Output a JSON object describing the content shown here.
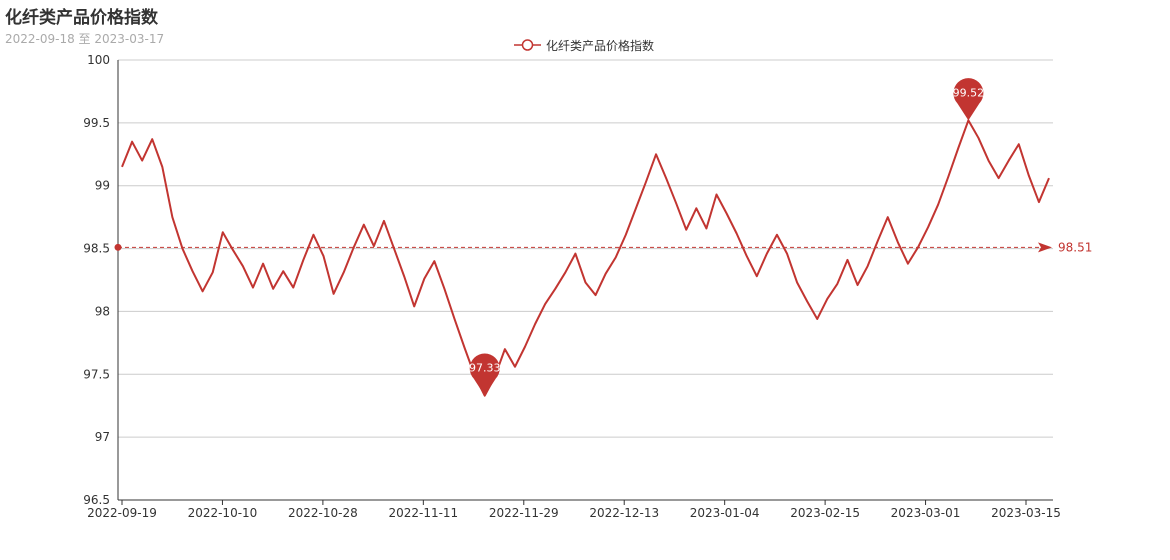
{
  "title": "化纤类产品价格指数",
  "subtitle": "2022-09-18 至 2023-03-17",
  "legend": {
    "label": "化纤类产品价格指数",
    "color": "#c23531"
  },
  "chart_data": {
    "type": "line",
    "title": "化纤类产品价格指数",
    "subtitle": "2022-09-18 至 2023-03-17",
    "xlabel": "",
    "ylabel": "",
    "ylim": [
      96.5,
      100
    ],
    "y_ticks": [
      "96.5",
      "97",
      "97.5",
      "98",
      "98.5",
      "99",
      "99.5",
      "100"
    ],
    "x_tick_labels": [
      "2022-09-19",
      "2022-10-10",
      "2022-10-28",
      "2022-11-11",
      "2022-11-29",
      "2022-12-13",
      "2023-01-04",
      "2023-02-15",
      "2023-03-01",
      "2023-03-15"
    ],
    "grid": true,
    "legend_position": "top-center",
    "series": [
      {
        "name": "化纤类产品价格指数",
        "color": "#c23531",
        "values": [
          99.15,
          99.35,
          99.2,
          99.37,
          99.15,
          98.75,
          98.5,
          98.32,
          98.16,
          98.31,
          98.63,
          98.49,
          98.36,
          98.19,
          98.38,
          98.18,
          98.32,
          98.19,
          98.41,
          98.61,
          98.44,
          98.14,
          98.31,
          98.51,
          98.69,
          98.52,
          98.72,
          98.5,
          98.28,
          98.04,
          98.26,
          98.4,
          98.18,
          97.94,
          97.71,
          97.49,
          97.33,
          97.48,
          97.7,
          97.56,
          97.72,
          97.9,
          98.06,
          98.18,
          98.31,
          98.46,
          98.23,
          98.13,
          98.3,
          98.43,
          98.61,
          98.82,
          99.03,
          99.25,
          99.06,
          98.86,
          98.65,
          98.82,
          98.66,
          98.93,
          98.78,
          98.62,
          98.44,
          98.28,
          98.46,
          98.61,
          98.46,
          98.23,
          98.08,
          97.94,
          98.1,
          98.22,
          98.41,
          98.21,
          98.36,
          98.56,
          98.75,
          98.55,
          98.38,
          98.51,
          98.67,
          98.85,
          99.07,
          99.3,
          99.52,
          99.38,
          99.2,
          99.06,
          99.2,
          99.33,
          99.08,
          98.87,
          99.06
        ]
      }
    ],
    "mark_points": [
      {
        "type": "max",
        "label": "99.52",
        "value": 99.52
      },
      {
        "type": "min",
        "label": "97.33",
        "value": 97.33
      }
    ],
    "mark_line": {
      "type": "average",
      "label": "98.51",
      "value": 98.51
    }
  }
}
